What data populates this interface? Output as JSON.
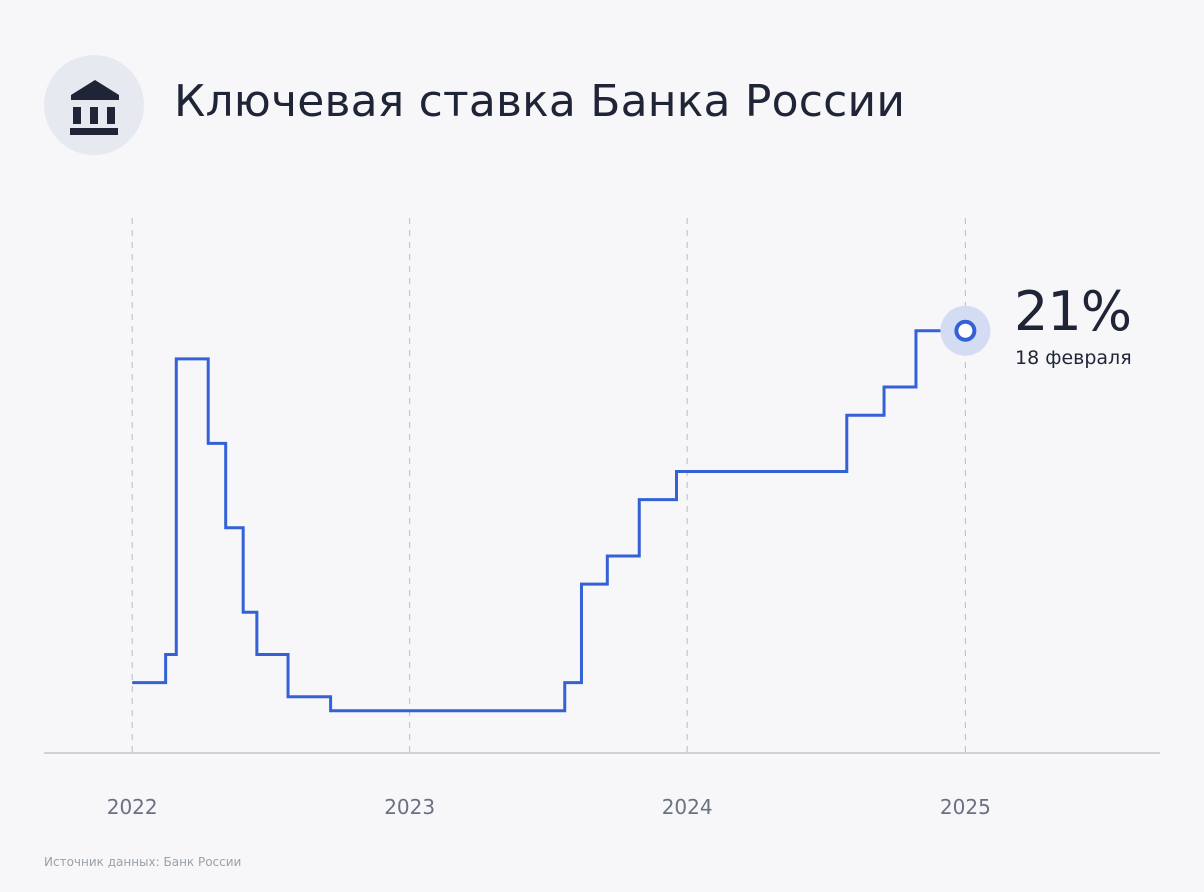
{
  "header": {
    "title": "Ключевая ставка Банка России",
    "icon": "bank-building-icon"
  },
  "callout": {
    "value": "21%",
    "date": "18 февраля"
  },
  "source": "Источник данных: Банк России",
  "colors": {
    "line": "#3561d6",
    "marker_halo": "#d3dcf3",
    "grid": "#b8bcc6",
    "axis": "#b8bcc6",
    "text": "#1f2536",
    "muted": "#6b7180"
  },
  "chart_data": {
    "type": "line",
    "step": true,
    "title": "Ключевая ставка Банка России",
    "xlabel": "",
    "ylabel": "",
    "x_ticks": [
      "2022",
      "2023",
      "2024",
      "2025"
    ],
    "x_tick_dates": [
      "2022-01-01",
      "2023-01-01",
      "2024-01-01",
      "2025-01-01"
    ],
    "xlim": [
      "2021-09-07",
      "2025-09-14"
    ],
    "ylim": [
      6,
      22
    ],
    "grid": "vertical-dashed",
    "legend": "none",
    "unit": "%",
    "series": [
      {
        "x": [
          "2022-01-01",
          "2022-02-14",
          "2022-02-28",
          "2022-04-11",
          "2022-05-04",
          "2022-05-27",
          "2022-06-14",
          "2022-07-25",
          "2022-09-19",
          "2023-07-24",
          "2023-08-15",
          "2023-09-18",
          "2023-10-30",
          "2023-12-18",
          "2024-07-29",
          "2024-09-16",
          "2024-10-28",
          "2025-01-01"
        ],
        "y": [
          8.5,
          9.5,
          20,
          17,
          14,
          11,
          9.5,
          8,
          7.5,
          8.5,
          12,
          13,
          15,
          16,
          18,
          19,
          21,
          21
        ]
      }
    ]
  }
}
